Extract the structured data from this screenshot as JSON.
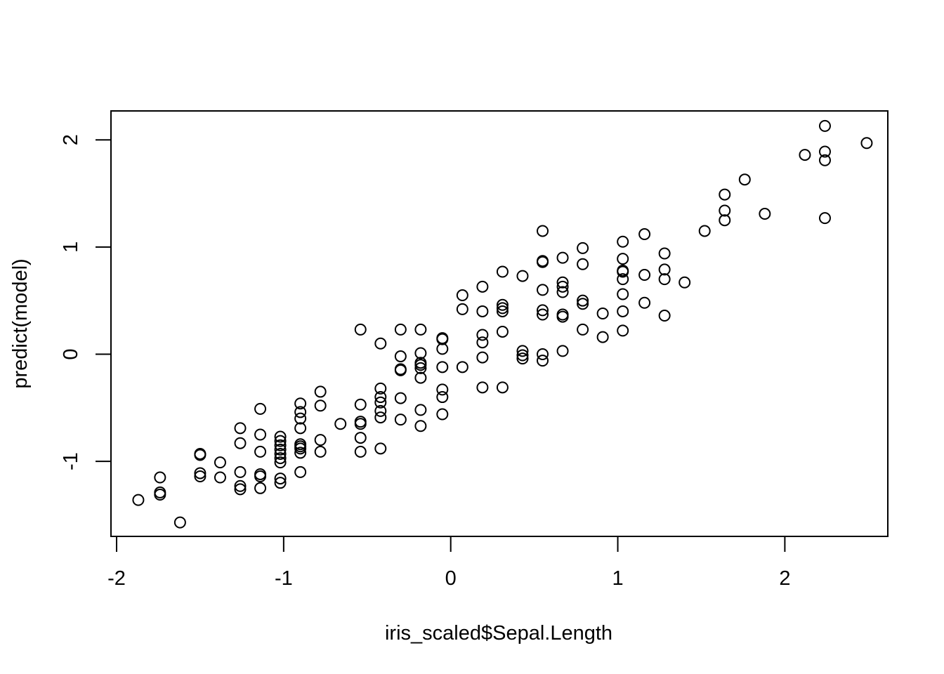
{
  "chart_data": {
    "type": "scatter",
    "title": "",
    "xlabel": "iris_scaled$Sepal.Length",
    "ylabel": "predict(model)",
    "xlim": [
      -2.0,
      2.65
    ],
    "ylim": [
      -1.7,
      2.27
    ],
    "xticks": [
      -2,
      -1,
      0,
      1,
      2
    ],
    "xtick_labels": [
      "-2",
      "-1",
      "0",
      "1",
      "2"
    ],
    "yticks": [
      -1,
      0,
      1,
      2
    ],
    "ytick_labels": [
      "-1",
      "0",
      "1",
      "2"
    ],
    "marker": "open-circle",
    "color": "#000000",
    "grid": false,
    "points": [
      [
        -1.87,
        -1.36
      ],
      [
        -1.74,
        -1.15
      ],
      [
        -1.74,
        -1.29
      ],
      [
        -1.74,
        -1.31
      ],
      [
        -1.62,
        -1.57
      ],
      [
        -1.5,
        -0.93
      ],
      [
        -1.5,
        -0.94
      ],
      [
        -1.5,
        -1.11
      ],
      [
        -1.5,
        -1.14
      ],
      [
        -1.38,
        -1.01
      ],
      [
        -1.38,
        -1.15
      ],
      [
        -1.26,
        -0.69
      ],
      [
        -1.26,
        -0.83
      ],
      [
        -1.26,
        -1.1
      ],
      [
        -1.26,
        -1.23
      ],
      [
        -1.26,
        -1.26
      ],
      [
        -1.14,
        -0.51
      ],
      [
        -1.14,
        -0.75
      ],
      [
        -1.14,
        -0.91
      ],
      [
        -1.14,
        -1.12
      ],
      [
        -1.14,
        -1.14
      ],
      [
        -1.14,
        -1.25
      ],
      [
        -1.02,
        -0.77
      ],
      [
        -1.02,
        -0.81
      ],
      [
        -1.02,
        -0.85
      ],
      [
        -1.02,
        -0.89
      ],
      [
        -1.02,
        -0.93
      ],
      [
        -1.02,
        -0.97
      ],
      [
        -1.02,
        -1.01
      ],
      [
        -1.02,
        -1.16
      ],
      [
        -1.02,
        -1.2
      ],
      [
        -0.9,
        -0.46
      ],
      [
        -0.9,
        -0.54
      ],
      [
        -0.9,
        -0.6
      ],
      [
        -0.9,
        -0.69
      ],
      [
        -0.9,
        -0.84
      ],
      [
        -0.9,
        -0.86
      ],
      [
        -0.9,
        -0.88
      ],
      [
        -0.9,
        -0.92
      ],
      [
        -0.9,
        -1.1
      ],
      [
        -0.78,
        -0.35
      ],
      [
        -0.78,
        -0.48
      ],
      [
        -0.78,
        -0.8
      ],
      [
        -0.78,
        -0.91
      ],
      [
        -0.66,
        -0.65
      ],
      [
        -0.54,
        0.23
      ],
      [
        -0.54,
        -0.47
      ],
      [
        -0.54,
        -0.63
      ],
      [
        -0.54,
        -0.65
      ],
      [
        -0.54,
        -0.78
      ],
      [
        -0.54,
        -0.91
      ],
      [
        -0.42,
        0.1
      ],
      [
        -0.42,
        -0.32
      ],
      [
        -0.42,
        -0.4
      ],
      [
        -0.42,
        -0.45
      ],
      [
        -0.42,
        -0.53
      ],
      [
        -0.42,
        -0.59
      ],
      [
        -0.42,
        -0.88
      ],
      [
        -0.3,
        0.23
      ],
      [
        -0.3,
        -0.02
      ],
      [
        -0.3,
        -0.14
      ],
      [
        -0.3,
        -0.15
      ],
      [
        -0.3,
        -0.41
      ],
      [
        -0.3,
        -0.61
      ],
      [
        -0.18,
        0.23
      ],
      [
        -0.18,
        0.01
      ],
      [
        -0.18,
        -0.08
      ],
      [
        -0.18,
        -0.1
      ],
      [
        -0.18,
        -0.13
      ],
      [
        -0.18,
        -0.22
      ],
      [
        -0.18,
        -0.52
      ],
      [
        -0.18,
        -0.67
      ],
      [
        -0.05,
        0.15
      ],
      [
        -0.05,
        0.14
      ],
      [
        -0.05,
        0.05
      ],
      [
        -0.05,
        -0.12
      ],
      [
        -0.05,
        -0.33
      ],
      [
        -0.05,
        -0.4
      ],
      [
        -0.05,
        -0.56
      ],
      [
        0.07,
        0.55
      ],
      [
        0.07,
        0.42
      ],
      [
        0.07,
        -0.12
      ],
      [
        0.19,
        0.63
      ],
      [
        0.19,
        0.4
      ],
      [
        0.19,
        0.18
      ],
      [
        0.19,
        0.11
      ],
      [
        0.19,
        -0.03
      ],
      [
        0.19,
        -0.31
      ],
      [
        0.31,
        0.77
      ],
      [
        0.31,
        0.46
      ],
      [
        0.31,
        0.43
      ],
      [
        0.31,
        0.4
      ],
      [
        0.31,
        0.21
      ],
      [
        0.31,
        -0.31
      ],
      [
        0.43,
        0.73
      ],
      [
        0.43,
        0.03
      ],
      [
        0.43,
        -0.01
      ],
      [
        0.43,
        -0.04
      ],
      [
        0.55,
        1.15
      ],
      [
        0.55,
        0.87
      ],
      [
        0.55,
        0.86
      ],
      [
        0.55,
        0.6
      ],
      [
        0.55,
        0.41
      ],
      [
        0.55,
        0.37
      ],
      [
        0.55,
        0.0
      ],
      [
        0.55,
        -0.06
      ],
      [
        0.67,
        0.9
      ],
      [
        0.67,
        0.67
      ],
      [
        0.67,
        0.63
      ],
      [
        0.67,
        0.58
      ],
      [
        0.67,
        0.37
      ],
      [
        0.67,
        0.35
      ],
      [
        0.67,
        0.03
      ],
      [
        0.79,
        0.99
      ],
      [
        0.79,
        0.84
      ],
      [
        0.79,
        0.5
      ],
      [
        0.79,
        0.47
      ],
      [
        0.79,
        0.23
      ],
      [
        0.91,
        0.38
      ],
      [
        0.91,
        0.16
      ],
      [
        1.03,
        1.05
      ],
      [
        1.03,
        0.89
      ],
      [
        1.03,
        0.78
      ],
      [
        1.03,
        0.77
      ],
      [
        1.03,
        0.7
      ],
      [
        1.03,
        0.56
      ],
      [
        1.03,
        0.4
      ],
      [
        1.03,
        0.22
      ],
      [
        1.16,
        1.12
      ],
      [
        1.16,
        0.74
      ],
      [
        1.16,
        0.48
      ],
      [
        1.28,
        0.94
      ],
      [
        1.28,
        0.79
      ],
      [
        1.28,
        0.7
      ],
      [
        1.28,
        0.36
      ],
      [
        1.4,
        0.67
      ],
      [
        1.52,
        1.15
      ],
      [
        1.64,
        1.49
      ],
      [
        1.64,
        1.34
      ],
      [
        1.64,
        1.25
      ],
      [
        1.76,
        1.63
      ],
      [
        1.88,
        1.31
      ],
      [
        2.12,
        1.86
      ],
      [
        2.24,
        2.13
      ],
      [
        2.24,
        1.89
      ],
      [
        2.24,
        1.81
      ],
      [
        2.24,
        1.27
      ],
      [
        2.49,
        1.97
      ]
    ]
  }
}
